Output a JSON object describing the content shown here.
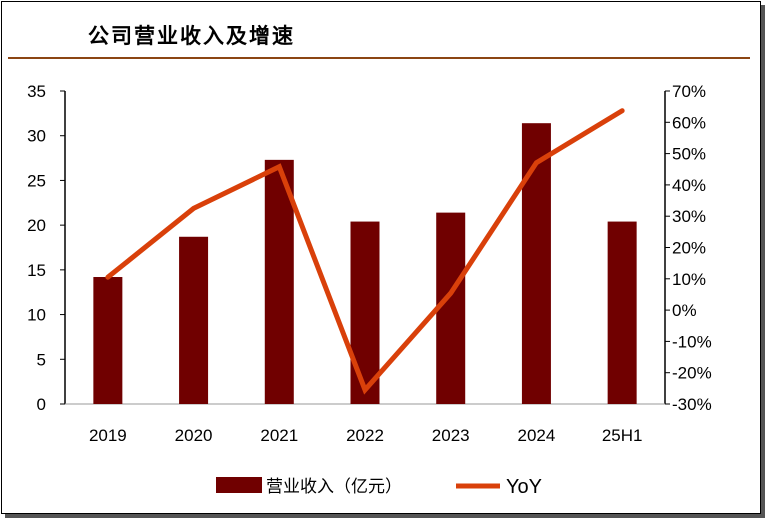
{
  "title": "公司营业收入及增速",
  "chart_data": {
    "type": "bar+line",
    "title": "公司营业收入及增速",
    "categories": [
      "2019",
      "2020",
      "2021",
      "2022",
      "2023",
      "2024",
      "25H1"
    ],
    "series": [
      {
        "name": "营业收入（亿元）",
        "type": "bar",
        "axis": "left",
        "color": "#700000",
        "values": [
          14.2,
          18.7,
          27.3,
          20.4,
          21.4,
          31.4,
          20.4
        ]
      },
      {
        "name": "YoY",
        "type": "line",
        "axis": "right",
        "color": "#D9400A",
        "values": [
          10.5,
          32.5,
          45.8,
          -25.5,
          5.4,
          47.1,
          63.7
        ]
      }
    ],
    "left_axis": {
      "ylim": [
        0,
        35
      ],
      "ticks": [
        "0",
        "5",
        "10",
        "15",
        "20",
        "25",
        "30",
        "35"
      ]
    },
    "right_axis": {
      "ylim": [
        -30,
        70
      ],
      "ticks": [
        "-30%",
        "-20%",
        "-10%",
        "0%",
        "10%",
        "20%",
        "30%",
        "40%",
        "50%",
        "60%",
        "70%"
      ]
    },
    "legend": {
      "placement": "bottom",
      "entries": [
        "营业收入（亿元）",
        "YoY"
      ]
    }
  }
}
